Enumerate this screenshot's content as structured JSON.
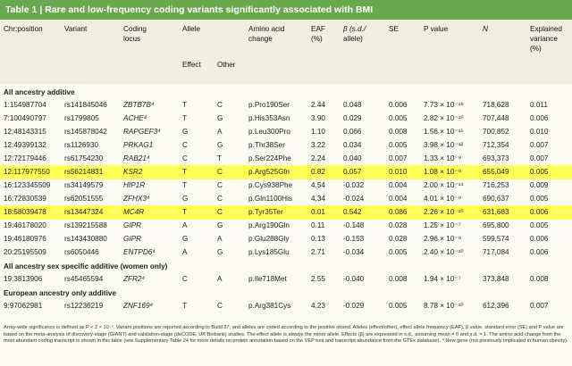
{
  "title_prefix": "Table 1 | ",
  "title": "Rare and low-frequency coding variants significantly associated with BMI",
  "headers": {
    "chr": "Chr:position",
    "variant": "Variant",
    "locus1": "Coding",
    "locus2": "locus",
    "allele": "Allele",
    "effect": "Effect",
    "other": "Other",
    "aa1": "Amino acid",
    "aa2": "change",
    "eaf1": "EAF",
    "eaf2": "(%)",
    "beta1": "β (s.d./",
    "beta2": "allele)",
    "se": "SE",
    "p": "P value",
    "n": "N",
    "ev1": "Explained",
    "ev2": "variance",
    "ev3": "(%)"
  },
  "sections": [
    {
      "label": "All ancestry additive",
      "rows": [
        [
          "1:154987704",
          "rs141845046",
          "ZBTB7B⁴",
          "T",
          "C",
          "p.Pro190Ser",
          "2.44",
          "0.048",
          "0.006",
          "7.73 × 10⁻¹⁸",
          "718,628",
          "0.011"
        ],
        [
          "7:100490797",
          "rs1799805",
          "ACHE⁴",
          "T",
          "G",
          "p.His353Asn",
          "3.90",
          "0.029",
          "0.005",
          "2.82 × 10⁻¹⁰",
          "707,448",
          "0.006"
        ],
        [
          "12:48143315",
          "rs145878042",
          "RAPGEF3⁴",
          "G",
          "A",
          "p.Leu300Pro",
          "1.10",
          "0.066",
          "0.008",
          "1.56 × 10⁻¹⁵",
          "700,852",
          "0.010"
        ],
        [
          "12:49399132",
          "rs1126930",
          "PRKAG1",
          "C",
          "G",
          "p.Thr38Ser",
          "3.22",
          "0.034",
          "0.005",
          "3.98 × 10⁻¹²",
          "712,354",
          "0.007"
        ],
        [
          "12:72179446",
          "rs61754230",
          "RAB21⁴",
          "C",
          "T",
          "p.Ser224Phe",
          "2.24",
          "0.040",
          "0.007",
          "1.33 × 10⁻⁹",
          "693,373",
          "0.007"
        ],
        [
          "12:117977550",
          "rs56214831",
          "KSR2",
          "T",
          "C",
          "p.Arg525Gln",
          "0.82",
          "0.057",
          "0.010",
          "1.08 × 10⁻⁸",
          "655,049",
          "0.005"
        ],
        [
          "16:123345509",
          "rs34149579",
          "HIP1R",
          "T",
          "C",
          "p.Cys938Phe",
          "4.54",
          "-0.032",
          "0.004",
          "2.00 × 10⁻¹⁴",
          "716,253",
          "0.009"
        ],
        [
          "16:72830539",
          "rs62051555",
          "ZFHX3⁴",
          "G",
          "C",
          "p.Gln1100His",
          "4.34",
          "-0.024",
          "0.004",
          "4.01 × 10⁻⁸",
          "690,637",
          "0.005"
        ],
        [
          "18:58039478",
          "rs13447324",
          "MC4R",
          "T",
          "C",
          "p.Tyr35Ter",
          "0.01",
          "0.542",
          "0.086",
          "2.26 × 10⁻¹⁰",
          "631,683",
          "0.006"
        ],
        [
          "19:46178020",
          "rs139215588",
          "GIPR",
          "A",
          "G",
          "p.Arg190Gln",
          "0.11",
          "-0.148",
          "0.028",
          "1.25 × 10⁻⁷",
          "695,800",
          "0.005"
        ],
        [
          "19:46180976",
          "rs143430880",
          "GIPR",
          "G",
          "A",
          "p.Glu288Gly",
          "0.13",
          "-0.153",
          "0.028",
          "2.96 × 10⁻⁸",
          "599,574",
          "0.006"
        ],
        [
          "20:25195509",
          "rs6050446",
          "ENTPD6⁴",
          "A",
          "G",
          "p.Lys185Glu",
          "2.71",
          "-0.034",
          "0.005",
          "2.40 × 10⁻¹⁰",
          "717,084",
          "0.006"
        ]
      ]
    },
    {
      "label": "All ancestry sex specific additive (women only)",
      "rows": [
        [
          "19:3813906",
          "rs45465594",
          "ZFR2⁴",
          "C",
          "A",
          "p.Ile718Met",
          "2.55",
          "-0.040",
          "0.008",
          "1.94 × 10⁻⁷",
          "373,848",
          "0.008"
        ]
      ]
    },
    {
      "label": "European ancestry only additive",
      "rows": [
        [
          "9:97062981",
          "rs12236219",
          "ZNF169⁴",
          "T",
          "C",
          "p.Arg381Cys",
          "4.23",
          "-0.029",
          "0.005",
          "8.78 × 10⁻¹⁰",
          "612,396",
          "0.007"
        ]
      ]
    }
  ],
  "highlight_rows": [
    "12:117977550",
    "18:58039478"
  ],
  "highlight_color": "#ffff55",
  "title_bar_color": "#6aa84f",
  "footnote": "Array-wide significance is defined as P < 2 × 10⁻⁷. Variant positions are reported according to Build 37, and alleles are coded according to the positive strand. Alleles (effect/other), effect allele frequency (EAF), β value, standard error (SE) and P value are based on the meta-analysis of discovery-stage (GIANT) and validation-stage (deCODE, UK Biobank) studies. The effect allele is always the minor allele. Effects (β) are expressed in s.d., assuming mean = 0 and s.d. = 1. The amino acid change from the most abundant coding transcript is shown in this table (see Supplementary Table 24 for more details on protein annotation based on the VEP tool and transcript abundance from the GTEx database). ⁴ New gene (not previously implicated in human obesity)."
}
